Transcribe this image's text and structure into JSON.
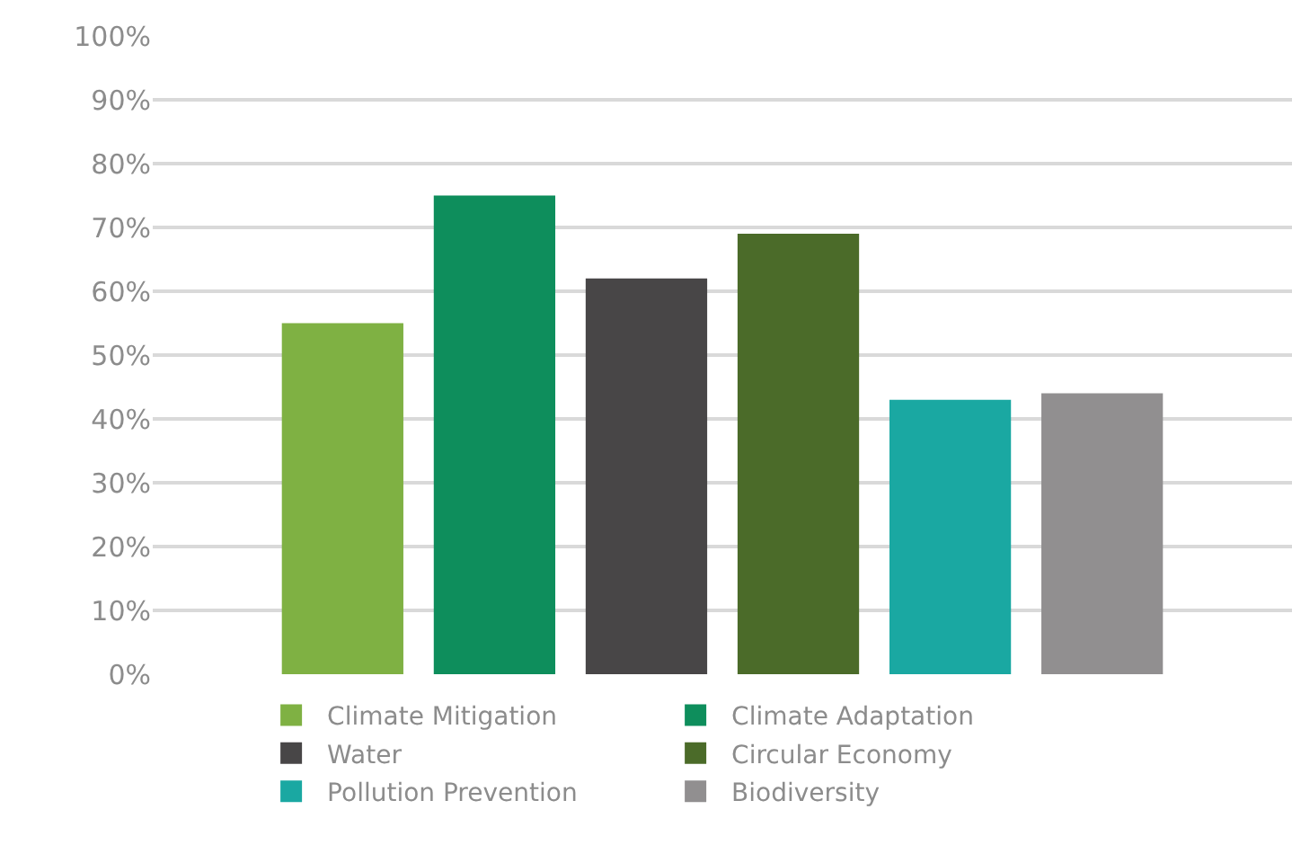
{
  "chart_data": {
    "type": "bar",
    "categories": [
      null
    ],
    "series": [
      {
        "name": "Climate Mitigation",
        "color": "#7fb143",
        "values": [
          55
        ]
      },
      {
        "name": "Climate Adaptation",
        "color": "#0e8e5c",
        "values": [
          75
        ]
      },
      {
        "name": "Water",
        "color": "#484647",
        "values": [
          62
        ]
      },
      {
        "name": "Circular Economy",
        "color": "#4b6b29",
        "values": [
          69
        ]
      },
      {
        "name": "Pollution Prevention",
        "color": "#1aa8a2",
        "values": [
          43
        ]
      },
      {
        "name": "Biodiversity",
        "color": "#918f90",
        "values": [
          44
        ]
      }
    ],
    "ylim": [
      0,
      100
    ],
    "yticks": [
      {
        "value": 0,
        "label": "0%"
      },
      {
        "value": 10,
        "label": "10%"
      },
      {
        "value": 20,
        "label": "20%"
      },
      {
        "value": 30,
        "label": "30%"
      },
      {
        "value": 40,
        "label": "40%"
      },
      {
        "value": 50,
        "label": "50%"
      },
      {
        "value": 60,
        "label": "60%"
      },
      {
        "value": 70,
        "label": "70%"
      },
      {
        "value": 80,
        "label": "80%"
      },
      {
        "value": 90,
        "label": "90%"
      },
      {
        "value": 100,
        "label": "100%"
      }
    ],
    "grid": "y",
    "legend": "bottom",
    "tick_labels": "y"
  }
}
